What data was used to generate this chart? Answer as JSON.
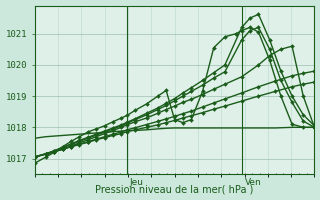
{
  "background_color": "#cce8dc",
  "plot_bg_color": "#dff0e8",
  "grid_color_major": "#9fbfb0",
  "grid_color_minor": "#b8d8cc",
  "line_color": "#1a5c1a",
  "ylim": [
    1016.5,
    1021.9
  ],
  "yticks": [
    1017,
    1018,
    1019,
    1020,
    1021
  ],
  "xlabel": "Pression niveau de la mer( hPa )",
  "day_labels": [
    "Jeu",
    "Ven"
  ],
  "day_positions": [
    0.33,
    0.74
  ],
  "xlim": [
    0.0,
    1.0
  ],
  "series": [
    {
      "x": [
        0.0,
        0.04,
        0.07,
        0.1,
        0.13,
        0.16,
        0.19,
        0.22,
        0.25,
        0.28,
        0.31,
        0.33,
        0.36,
        0.4,
        0.44,
        0.47,
        0.5,
        0.53,
        0.56,
        0.6,
        0.64,
        0.68,
        0.74,
        0.8,
        0.86,
        0.92,
        0.96,
        1.0
      ],
      "y": [
        1017.65,
        1017.7,
        1017.72,
        1017.74,
        1017.76,
        1017.78,
        1017.8,
        1017.82,
        1017.84,
        1017.86,
        1017.88,
        1017.9,
        1017.9,
        1017.92,
        1017.95,
        1017.97,
        1017.98,
        1017.98,
        1017.98,
        1017.98,
        1017.98,
        1017.98,
        1017.98,
        1017.98,
        1017.98,
        1018.0,
        1018.0,
        1018.0
      ],
      "marker": null,
      "lw": 1.0
    },
    {
      "x": [
        0.0,
        0.04,
        0.07,
        0.1,
        0.13,
        0.16,
        0.19,
        0.22,
        0.25,
        0.28,
        0.31,
        0.33,
        0.36,
        0.4,
        0.44,
        0.47,
        0.5,
        0.53,
        0.56,
        0.6,
        0.64,
        0.68,
        0.74,
        0.8,
        0.86,
        0.92,
        0.96,
        1.0
      ],
      "y": [
        1017.05,
        1017.15,
        1017.22,
        1017.3,
        1017.38,
        1017.45,
        1017.52,
        1017.6,
        1017.67,
        1017.74,
        1017.8,
        1017.86,
        1017.92,
        1018.0,
        1018.08,
        1018.15,
        1018.22,
        1018.3,
        1018.37,
        1018.47,
        1018.58,
        1018.68,
        1018.84,
        1019.0,
        1019.15,
        1019.3,
        1019.38,
        1019.45
      ],
      "marker": "D",
      "lw": 1.0
    },
    {
      "x": [
        0.0,
        0.04,
        0.07,
        0.1,
        0.13,
        0.16,
        0.19,
        0.22,
        0.25,
        0.28,
        0.31,
        0.33,
        0.36,
        0.4,
        0.44,
        0.47,
        0.5,
        0.53,
        0.56,
        0.6,
        0.64,
        0.68,
        0.74,
        0.8,
        0.86,
        0.92,
        0.96,
        1.0
      ],
      "y": [
        1017.05,
        1017.15,
        1017.22,
        1017.3,
        1017.38,
        1017.46,
        1017.54,
        1017.62,
        1017.7,
        1017.78,
        1017.85,
        1017.92,
        1017.99,
        1018.09,
        1018.19,
        1018.27,
        1018.35,
        1018.44,
        1018.52,
        1018.65,
        1018.78,
        1018.91,
        1019.1,
        1019.3,
        1019.48,
        1019.65,
        1019.73,
        1019.8
      ],
      "marker": "D",
      "lw": 1.0
    },
    {
      "x": [
        0.0,
        0.04,
        0.07,
        0.1,
        0.13,
        0.16,
        0.19,
        0.22,
        0.25,
        0.28,
        0.31,
        0.33,
        0.36,
        0.4,
        0.44,
        0.47,
        0.5,
        0.53,
        0.56,
        0.6,
        0.64,
        0.68,
        0.74,
        0.8,
        0.84,
        0.88,
        0.92,
        0.96,
        1.0
      ],
      "y": [
        1017.05,
        1017.15,
        1017.22,
        1017.3,
        1017.4,
        1017.5,
        1017.6,
        1017.7,
        1017.8,
        1017.9,
        1018.0,
        1018.08,
        1018.18,
        1018.3,
        1018.45,
        1018.57,
        1018.68,
        1018.8,
        1018.9,
        1019.05,
        1019.22,
        1019.38,
        1019.62,
        1020.0,
        1020.3,
        1020.5,
        1020.6,
        1019.0,
        1018.0
      ],
      "marker": "D",
      "lw": 1.0
    },
    {
      "x": [
        0.0,
        0.04,
        0.07,
        0.1,
        0.13,
        0.16,
        0.19,
        0.22,
        0.25,
        0.28,
        0.31,
        0.33,
        0.36,
        0.4,
        0.44,
        0.47,
        0.5,
        0.53,
        0.56,
        0.6,
        0.64,
        0.68,
        0.74,
        0.77,
        0.8,
        0.84,
        0.88,
        0.92,
        0.96,
        1.0
      ],
      "y": [
        1017.05,
        1017.15,
        1017.25,
        1017.35,
        1017.45,
        1017.55,
        1017.65,
        1017.75,
        1017.85,
        1017.95,
        1018.05,
        1018.13,
        1018.25,
        1018.4,
        1018.57,
        1018.7,
        1018.85,
        1019.0,
        1019.15,
        1019.35,
        1019.58,
        1019.78,
        1020.8,
        1021.1,
        1021.2,
        1020.5,
        1019.5,
        1018.8,
        1018.2,
        1018.0
      ],
      "marker": "D",
      "lw": 1.0
    },
    {
      "x": [
        0.0,
        0.04,
        0.07,
        0.1,
        0.13,
        0.16,
        0.19,
        0.22,
        0.25,
        0.28,
        0.31,
        0.33,
        0.36,
        0.4,
        0.44,
        0.47,
        0.5,
        0.53,
        0.56,
        0.6,
        0.64,
        0.68,
        0.74,
        0.77,
        0.8,
        0.84,
        0.88,
        0.92,
        0.96,
        1.0
      ],
      "y": [
        1017.05,
        1017.15,
        1017.25,
        1017.36,
        1017.47,
        1017.58,
        1017.68,
        1017.78,
        1017.88,
        1017.98,
        1018.08,
        1018.16,
        1018.28,
        1018.45,
        1018.62,
        1018.77,
        1018.92,
        1019.1,
        1019.27,
        1019.5,
        1019.75,
        1020.0,
        1021.2,
        1021.5,
        1021.62,
        1020.8,
        1019.8,
        1019.0,
        1018.4,
        1018.05
      ],
      "marker": "D",
      "lw": 1.0
    },
    {
      "x": [
        0.0,
        0.04,
        0.07,
        0.1,
        0.13,
        0.16,
        0.19,
        0.22,
        0.25,
        0.28,
        0.31,
        0.33,
        0.36,
        0.4,
        0.44,
        0.47,
        0.5,
        0.53,
        0.56,
        0.6,
        0.64,
        0.68,
        0.72,
        0.74,
        0.77,
        0.8,
        0.84,
        0.88,
        0.92,
        0.96,
        1.0
      ],
      "y": [
        1016.85,
        1017.05,
        1017.2,
        1017.38,
        1017.55,
        1017.7,
        1017.85,
        1017.95,
        1018.05,
        1018.18,
        1018.3,
        1018.38,
        1018.55,
        1018.75,
        1019.0,
        1019.18,
        1018.25,
        1018.15,
        1018.25,
        1019.15,
        1020.55,
        1020.9,
        1021.0,
        1021.1,
        1021.2,
        1021.05,
        1020.15,
        1019.0,
        1018.1,
        1018.0,
        1018.0
      ],
      "marker": "D",
      "lw": 1.0
    }
  ],
  "marker_size": 2.0,
  "figsize": [
    3.2,
    2.0
  ],
  "dpi": 100
}
